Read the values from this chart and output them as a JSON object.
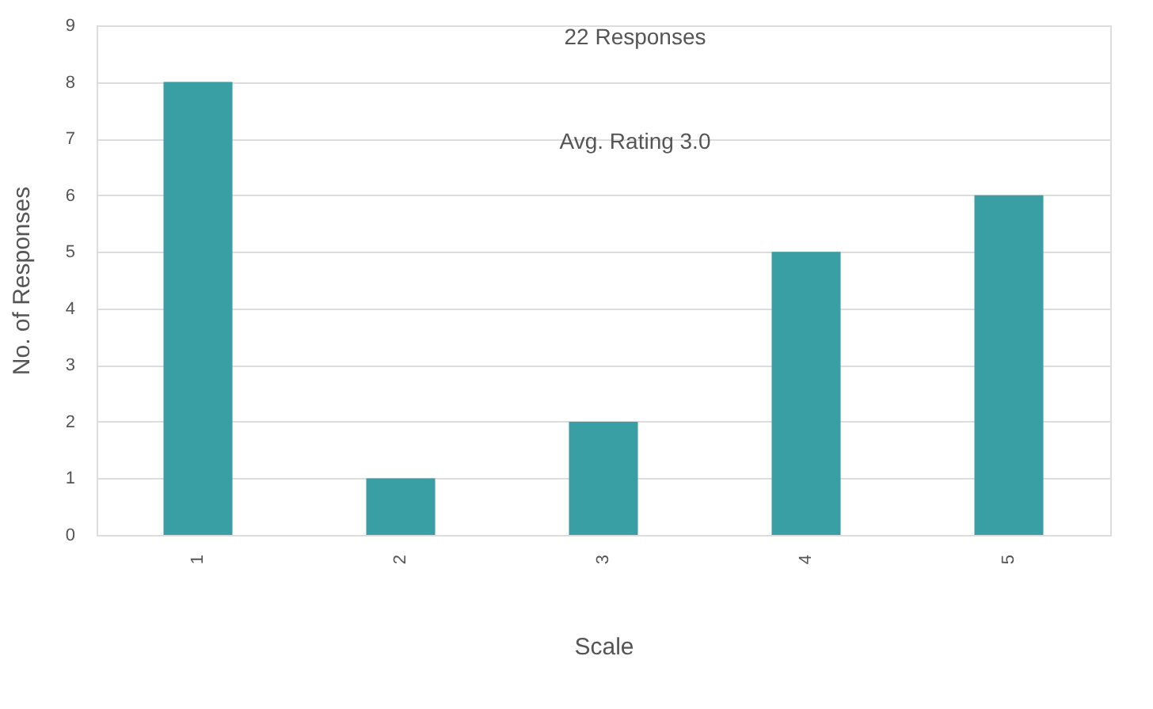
{
  "chart_data": {
    "type": "bar",
    "xlabel": "Scale",
    "ylabel": "No. of Responses",
    "categories": [
      "1",
      "2",
      "3",
      "4",
      "5"
    ],
    "series": [
      {
        "color": "#3a9ea5",
        "values": [
          8,
          1,
          2,
          5,
          6
        ]
      }
    ],
    "ylim": [
      0,
      9
    ],
    "yticks": [
      0,
      1,
      2,
      3,
      4,
      5,
      6,
      7,
      8,
      9
    ],
    "grid": "y",
    "legend": false,
    "annotations": [
      "22 Responses",
      "Avg. Rating 3.0"
    ]
  }
}
